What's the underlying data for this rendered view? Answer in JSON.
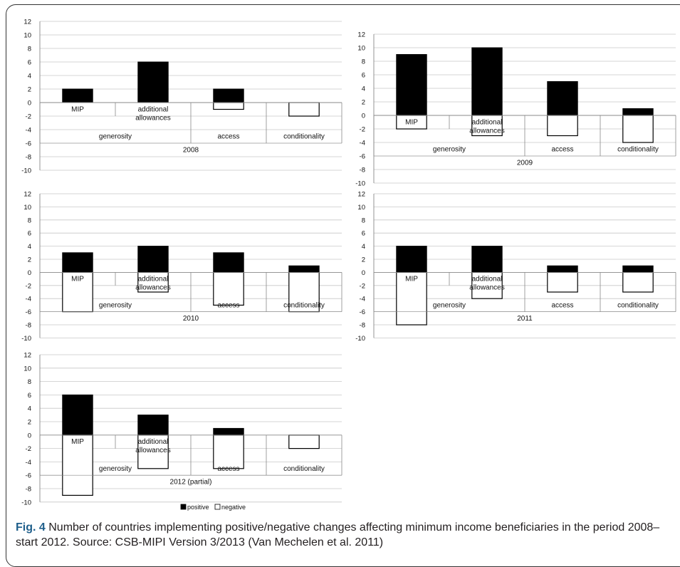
{
  "chart_data": [
    {
      "type": "bar",
      "stacked": true,
      "title": "2008",
      "categories": [
        "MIP",
        "additional allowances",
        "access",
        "conditionality"
      ],
      "groups": [
        {
          "label": "generosity",
          "categories": [
            "MIP",
            "additional allowances"
          ]
        },
        {
          "label": "access",
          "categories": [
            "access"
          ]
        },
        {
          "label": "conditionality",
          "categories": [
            "conditionality"
          ]
        }
      ],
      "series": [
        {
          "name": "positive",
          "values": [
            2,
            6,
            2,
            0
          ]
        },
        {
          "name": "negative",
          "values": [
            0,
            0,
            -1,
            -2
          ]
        }
      ],
      "ylim": [
        -10,
        12
      ],
      "yticks": [
        12,
        10,
        8,
        6,
        4,
        2,
        0,
        -2,
        -4,
        -6,
        -8,
        -10
      ],
      "grid": true
    },
    {
      "type": "bar",
      "stacked": true,
      "title": "2009",
      "categories": [
        "MIP",
        "additional allowances",
        "access",
        "conditionality"
      ],
      "groups": [
        {
          "label": "generosity",
          "categories": [
            "MIP",
            "additional allowances"
          ]
        },
        {
          "label": "access",
          "categories": [
            "access"
          ]
        },
        {
          "label": "conditionality",
          "categories": [
            "conditionality"
          ]
        }
      ],
      "series": [
        {
          "name": "positive",
          "values": [
            9,
            10,
            5,
            1
          ]
        },
        {
          "name": "negative",
          "values": [
            -2,
            -3,
            -3,
            -4
          ]
        }
      ],
      "ylim": [
        -10,
        12
      ],
      "yticks": [
        12,
        10,
        8,
        6,
        4,
        2,
        0,
        -2,
        -4,
        -6,
        -8,
        -10
      ],
      "grid": true
    },
    {
      "type": "bar",
      "stacked": true,
      "title": "2010",
      "categories": [
        "MIP",
        "additional allowances",
        "access",
        "conditionality"
      ],
      "groups": [
        {
          "label": "generosity",
          "categories": [
            "MIP",
            "additional allowances"
          ]
        },
        {
          "label": "access",
          "categories": [
            "access"
          ]
        },
        {
          "label": "conditionality",
          "categories": [
            "conditionality"
          ]
        }
      ],
      "series": [
        {
          "name": "positive",
          "values": [
            3,
            4,
            3,
            1
          ]
        },
        {
          "name": "negative",
          "values": [
            -6,
            -3,
            -5,
            -6
          ]
        }
      ],
      "ylim": [
        -10,
        12
      ],
      "yticks": [
        12,
        10,
        8,
        6,
        4,
        2,
        0,
        -2,
        -4,
        -6,
        -8,
        -10
      ],
      "grid": true
    },
    {
      "type": "bar",
      "stacked": true,
      "title": "2011",
      "categories": [
        "MIP",
        "additional allowances",
        "access",
        "conditionality"
      ],
      "groups": [
        {
          "label": "generosity",
          "categories": [
            "MIP",
            "additional allowances"
          ]
        },
        {
          "label": "access",
          "categories": [
            "access"
          ]
        },
        {
          "label": "conditionality",
          "categories": [
            "conditionality"
          ]
        }
      ],
      "series": [
        {
          "name": "positive",
          "values": [
            4,
            4,
            1,
            1
          ]
        },
        {
          "name": "negative",
          "values": [
            -8,
            -4,
            -3,
            -3
          ]
        }
      ],
      "ylim": [
        -10,
        12
      ],
      "yticks": [
        12,
        10,
        8,
        6,
        4,
        2,
        0,
        -2,
        -4,
        -6,
        -8,
        -10
      ],
      "grid": true
    },
    {
      "type": "bar",
      "stacked": true,
      "title": "2012 (partial)",
      "categories": [
        "MIP",
        "additional allowances",
        "access",
        "conditionality"
      ],
      "groups": [
        {
          "label": "generosity",
          "categories": [
            "MIP",
            "additional allowances"
          ]
        },
        {
          "label": "access",
          "categories": [
            "access"
          ]
        },
        {
          "label": "conditionality",
          "categories": [
            "conditionality"
          ]
        }
      ],
      "series": [
        {
          "name": "positive",
          "values": [
            6,
            3,
            1,
            0
          ]
        },
        {
          "name": "negative",
          "values": [
            -9,
            -5,
            -5,
            -2
          ]
        }
      ],
      "ylim": [
        -10,
        12
      ],
      "yticks": [
        12,
        10,
        8,
        6,
        4,
        2,
        0,
        -2,
        -4,
        -6,
        -8,
        -10
      ],
      "grid": true,
      "legend": {
        "position": "bottom",
        "entries": [
          "positive",
          "negative"
        ]
      }
    }
  ],
  "colors": {
    "positive": "#000000",
    "negative": "#ffffff",
    "grid": "#c8c8c8",
    "axis": "#888888"
  },
  "caption": {
    "label": "Fig. 4",
    "text": "Number of countries implementing positive/negative changes affecting minimum income beneficiaries in the period 2008–start 2012. Source: CSB-MIPI Version 3/2013 (Van Mechelen et al. 2011)"
  }
}
